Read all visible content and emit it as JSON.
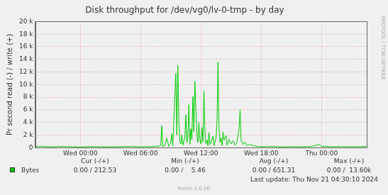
{
  "chart_data": {
    "type": "line",
    "title": "Disk throughput for /dev/vg0/lv-0-tmp - by day",
    "y_label": "Pr second read (-) / write (+)",
    "x": [
      -4.5,
      -4,
      -3,
      -2,
      -1,
      0,
      1,
      2,
      3,
      4,
      5,
      6,
      7,
      7.5,
      8,
      8.1,
      8.2,
      8.4,
      8.6,
      8.8,
      9.0,
      9.1,
      9.2,
      9.3,
      9.4,
      9.5,
      9.6,
      9.7,
      9.8,
      9.9,
      10.0,
      10.1,
      10.2,
      10.4,
      10.5,
      10.6,
      10.7,
      10.8,
      10.9,
      11.0,
      11.1,
      11.2,
      11.3,
      11.4,
      11.5,
      11.6,
      11.7,
      11.8,
      11.9,
      12.0,
      12.1,
      12.2,
      12.3,
      12.4,
      12.5,
      12.6,
      12.7,
      12.8,
      12.9,
      13.0,
      13.2,
      13.3,
      13.5,
      13.6,
      13.7,
      13.8,
      13.9,
      14.0,
      14.1,
      14.2,
      14.3,
      14.5,
      14.6,
      14.8,
      15.0,
      15.2,
      15.4,
      15.6,
      15.8,
      15.9,
      16.0,
      16.2,
      16.4,
      16.6,
      16.8,
      17.5,
      18,
      19,
      20,
      21,
      22,
      23,
      23.8,
      24,
      25,
      26,
      27,
      28,
      28.5
    ],
    "series": [
      {
        "name": "Bytes",
        "color": "#00cc00",
        "values": [
          150,
          200,
          120,
          180,
          150,
          100,
          160,
          140,
          120,
          150,
          180,
          130,
          160,
          200,
          300,
          3500,
          200,
          300,
          1500,
          200,
          800,
          2200,
          300,
          4000,
          8000,
          11800,
          2000,
          13000,
          4500,
          1000,
          600,
          2000,
          400,
          1600,
          5200,
          800,
          1800,
          6800,
          500,
          3000,
          1200,
          8100,
          2500,
          10500,
          6000,
          2000,
          800,
          4000,
          1200,
          600,
          3200,
          900,
          9000,
          2500,
          600,
          1200,
          300,
          2400,
          500,
          800,
          1800,
          300,
          1500,
          4000,
          13600,
          3000,
          800,
          1600,
          300,
          2500,
          1200,
          1900,
          400,
          1300,
          600,
          1100,
          400,
          900,
          3000,
          6000,
          1200,
          500,
          900,
          300,
          500,
          200,
          150,
          180,
          120,
          150,
          130,
          180,
          500,
          200,
          150,
          170,
          130,
          150,
          212.53
        ]
      }
    ],
    "xlim": [
      -4.5,
      28.5
    ],
    "xticks": [
      {
        "value": 0,
        "label": "Wed 00:00"
      },
      {
        "value": 6,
        "label": "Wed 06:00"
      },
      {
        "value": 12,
        "label": "Wed 12:00"
      },
      {
        "value": 18,
        "label": "Wed 18:00"
      },
      {
        "value": 24,
        "label": "Thu 00:00"
      }
    ],
    "ylim": [
      0,
      20000
    ],
    "yticks": [
      0,
      {
        "value": 2000,
        "label": "2 k"
      },
      {
        "value": 4000,
        "label": "4 k"
      },
      {
        "value": 6000,
        "label": "6 k"
      },
      {
        "value": 8000,
        "label": "8 k"
      },
      {
        "value": 10000,
        "label": "10 k"
      },
      {
        "value": 12000,
        "label": "12 k"
      },
      {
        "value": 14000,
        "label": "14 k"
      },
      {
        "value": 16000,
        "label": "16 k"
      },
      {
        "value": 18000,
        "label": "18 k"
      },
      {
        "value": 20000,
        "label": "20 k"
      }
    ],
    "grid": true,
    "legend_table": {
      "columns": [
        "Cur (-/+)",
        "Min (-/+)",
        "Avg (-/+)",
        "Max (-/+)"
      ],
      "cells": [
        "0.00 / 212.53",
        "0.00 /    5.46",
        "0.00 / 651.31",
        "0.00 /  13.60k"
      ]
    },
    "annotations": [
      "RRDTOOL / TOBI OETIKER",
      "Last update: Thu Nov 21 04:30:10 2024",
      "Munin 2.0.56"
    ]
  }
}
